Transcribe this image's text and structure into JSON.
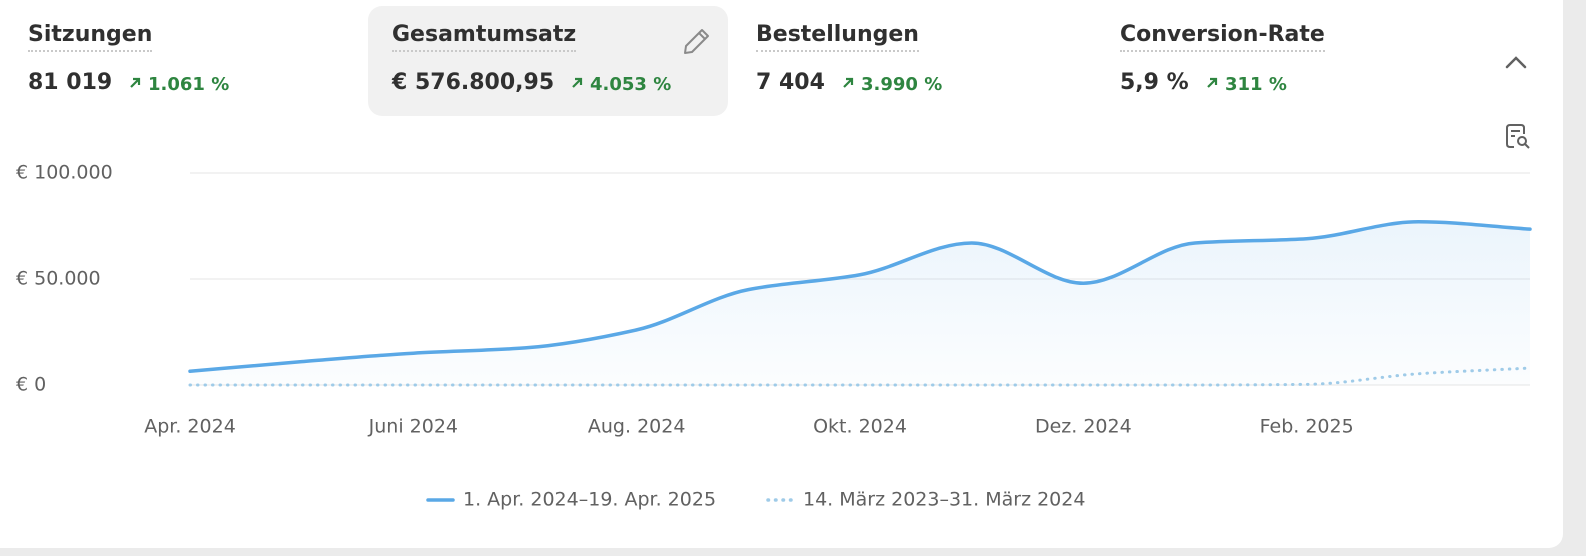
{
  "metrics": [
    {
      "label": "Sitzungen",
      "value": "81 019",
      "change": "1.061 %"
    },
    {
      "label": "Gesamtumsatz",
      "value": "€ 576.800,95",
      "change": "4.053 %"
    },
    {
      "label": "Bestellungen",
      "value": "7 404",
      "change": "3.990 %"
    },
    {
      "label": "Conversion-Rate",
      "value": "5,9 %",
      "change": "311 %"
    }
  ],
  "chart_data": {
    "type": "line",
    "categories": [
      "Apr. 2024",
      null,
      "Juni 2024",
      null,
      "Aug. 2024",
      null,
      "Okt. 2024",
      null,
      "Dez. 2024",
      null,
      "Feb. 2025",
      null,
      null
    ],
    "series": [
      {
        "name": "1. Apr. 2024–19. Apr. 2025",
        "color": "#5aa8e6",
        "values": [
          6500,
          11000,
          15000,
          17500,
          26000,
          45000,
          52000,
          67000,
          48000,
          67000,
          69000,
          77000,
          73500
        ]
      },
      {
        "name": "14. März 2023–31. März 2024",
        "color": "#9fcbe8",
        "values": [
          0,
          0,
          0,
          0,
          0,
          0,
          0,
          0,
          0,
          0,
          300,
          5300,
          8000
        ]
      }
    ],
    "ylim": [
      0,
      100000
    ],
    "yticks": [
      {
        "value": 0,
        "label": "€ 0"
      },
      {
        "value": 50000,
        "label": "€ 50.000"
      },
      {
        "value": 100000,
        "label": "€ 100.000"
      }
    ],
    "grid": true
  }
}
